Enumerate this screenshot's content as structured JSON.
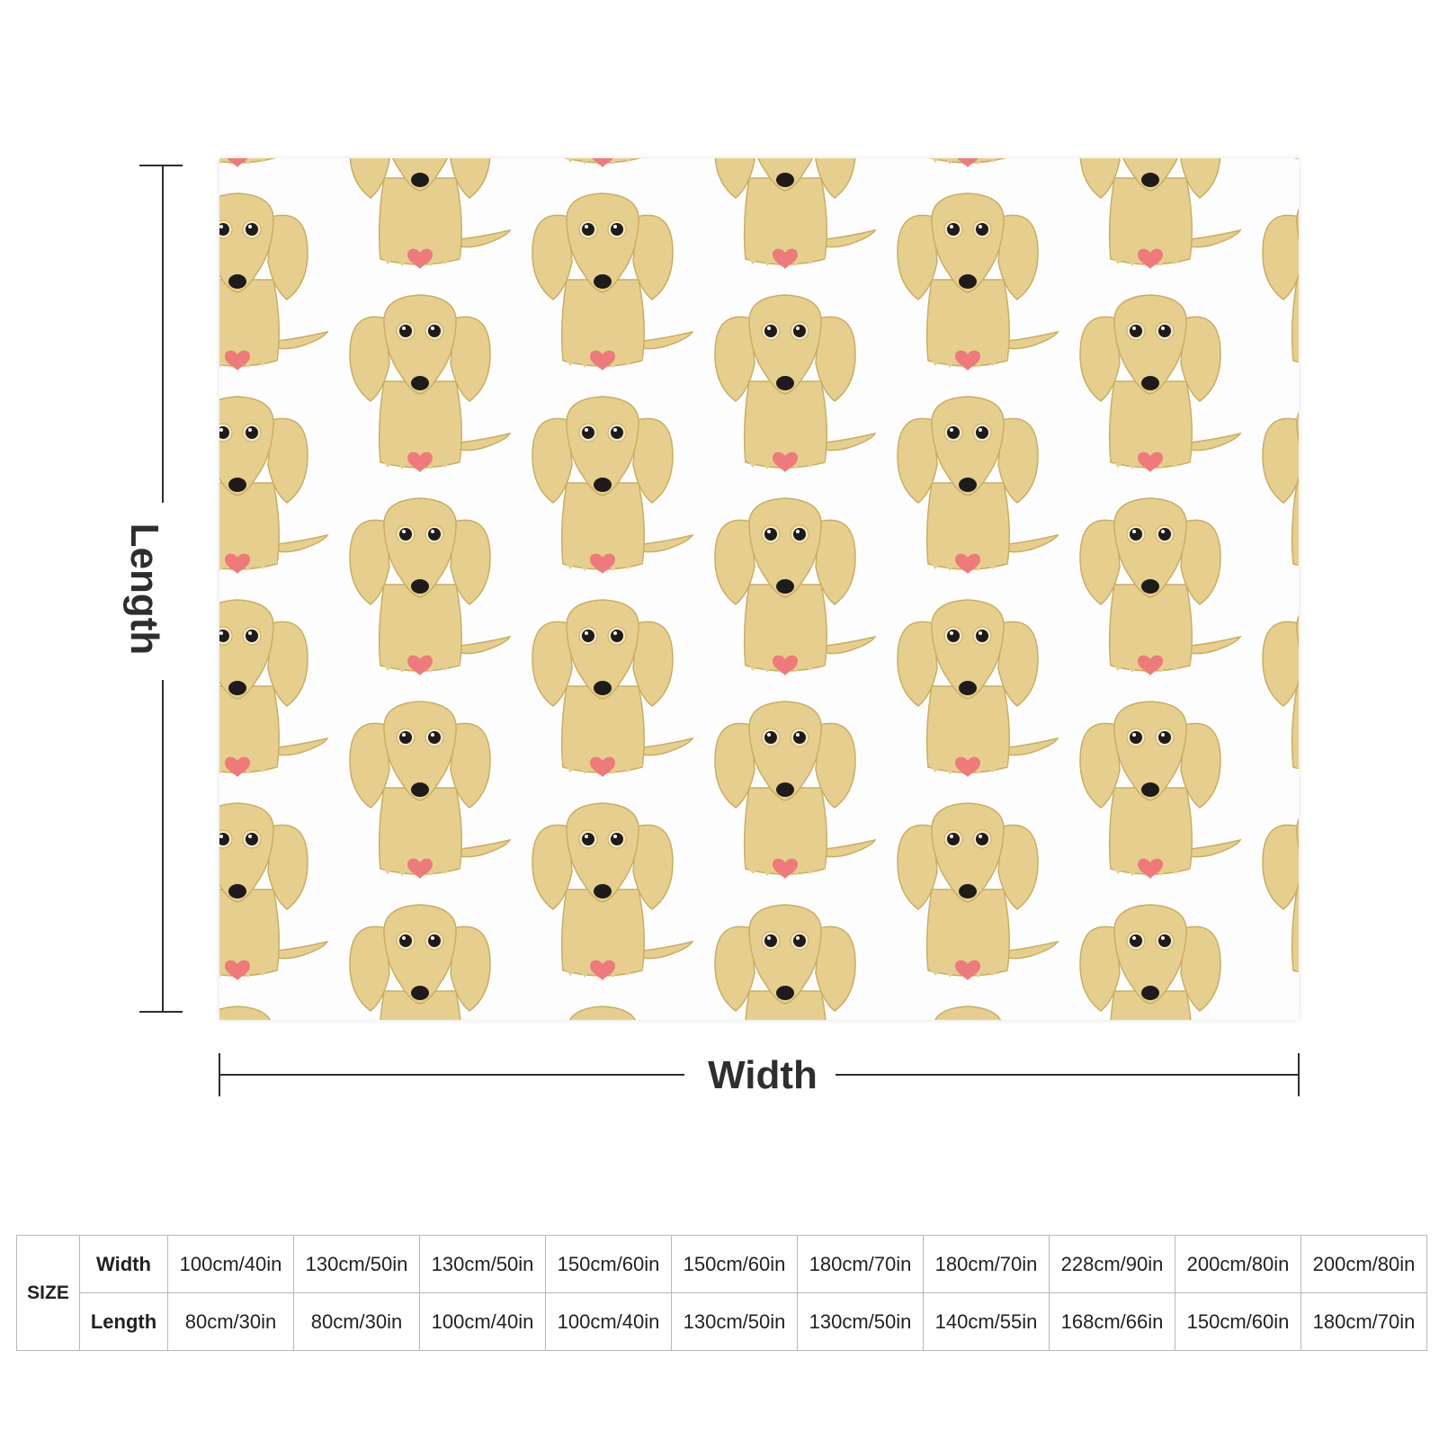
{
  "diagram": {
    "length_label": "Length",
    "width_label": "Width"
  },
  "pattern": {
    "background": "#fdfdfd",
    "dog_color": "#e6cf8e",
    "dog_shade": "#c9ad64",
    "heart_color": "#ee7a7c",
    "nose_color": "#1e1b1a",
    "motif_icon": "dachshund-dog-icon",
    "accent_icon": "heart-icon"
  },
  "size_table": {
    "header": "SIZE",
    "width_label": "Width",
    "length_label": "Length",
    "widths": [
      "100cm/40in",
      "130cm/50in",
      "130cm/50in",
      "150cm/60in",
      "150cm/60in",
      "180cm/70in",
      "180cm/70in",
      "228cm/90in",
      "200cm/80in",
      "200cm/80in"
    ],
    "lengths": [
      "80cm/30in",
      "80cm/30in",
      "100cm/40in",
      "100cm/40in",
      "130cm/50in",
      "130cm/50in",
      "140cm/55in",
      "168cm/66in",
      "150cm/60in",
      "180cm/70in"
    ]
  }
}
